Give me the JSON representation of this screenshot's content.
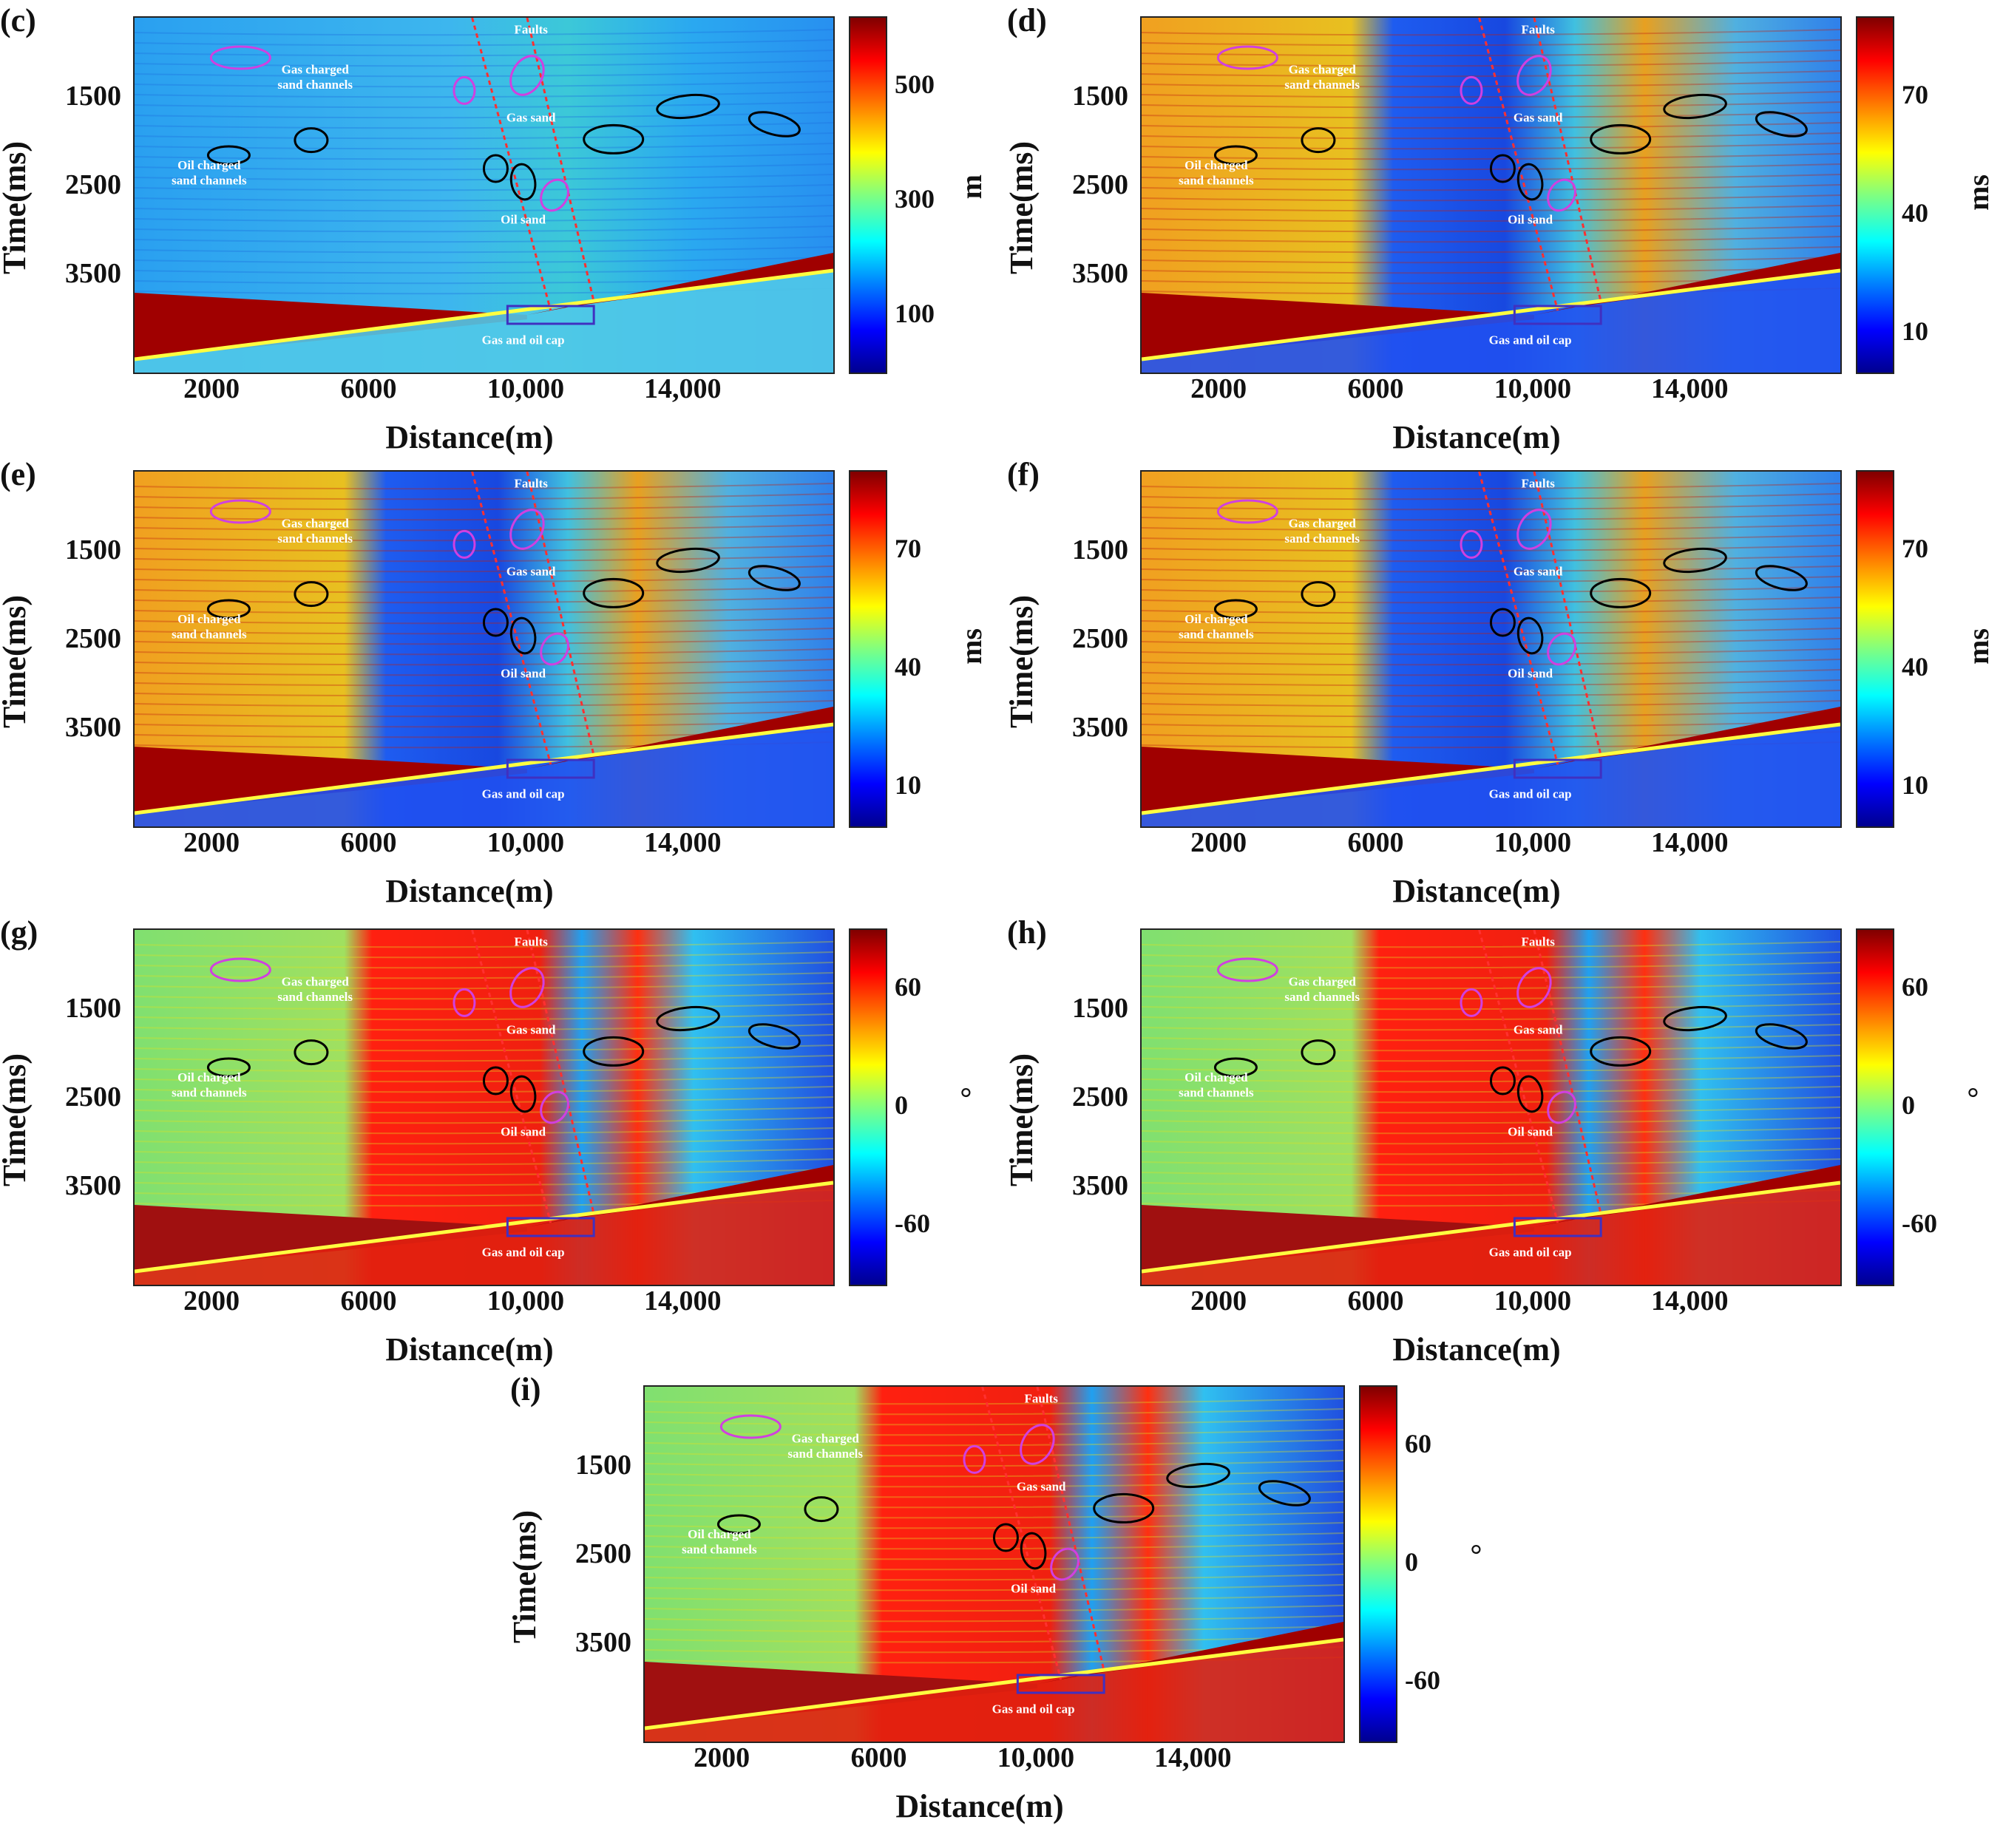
{
  "chart_data": [
    {
      "type": "heatmap",
      "panel_label": "(c)",
      "xlabel": "Distance(m)",
      "ylabel": "Time(ms)",
      "x_ticks": [
        "2000",
        "6000",
        "10,000",
        "14,000"
      ],
      "y_ticks": [
        "1500",
        "2500",
        "3500"
      ],
      "colorbar": {
        "unit": "m",
        "ticks": [
          "500",
          "300",
          "100"
        ],
        "range": [
          0,
          620
        ]
      },
      "annotations": [
        "Faults",
        "Gas charged",
        "sand channels",
        "Gas sand",
        "Oil charged",
        "sand channels",
        "Oil sand",
        "Gas and oil cap"
      ]
    },
    {
      "type": "heatmap",
      "panel_label": "(d)",
      "xlabel": "Distance(m)",
      "ylabel": "Time(ms)",
      "x_ticks": [
        "2000",
        "6000",
        "10,000",
        "14,000"
      ],
      "y_ticks": [
        "1500",
        "2500",
        "3500"
      ],
      "colorbar": {
        "unit": "ms",
        "ticks": [
          "70",
          "40",
          "10"
        ],
        "range": [
          0,
          90
        ]
      },
      "annotations": [
        "Faults",
        "Gas charged",
        "sand channels",
        "Gas sand",
        "Oil charged",
        "sand channels",
        "Oil sand",
        "Gas and oil cap"
      ]
    },
    {
      "type": "heatmap",
      "panel_label": "(e)",
      "xlabel": "Distance(m)",
      "ylabel": "Time(ms)",
      "x_ticks": [
        "2000",
        "6000",
        "10,000",
        "14,000"
      ],
      "y_ticks": [
        "1500",
        "2500",
        "3500"
      ],
      "colorbar": {
        "unit": "ms",
        "ticks": [
          "70",
          "40",
          "10"
        ],
        "range": [
          0,
          90
        ]
      },
      "annotations": [
        "Faults",
        "Gas charged",
        "sand channels",
        "Gas sand",
        "Oil charged",
        "sand channels",
        "Oil sand",
        "Gas and oil cap"
      ]
    },
    {
      "type": "heatmap",
      "panel_label": "(f)",
      "xlabel": "Distance(m)",
      "ylabel": "Time(ms)",
      "x_ticks": [
        "2000",
        "6000",
        "10,000",
        "14,000"
      ],
      "y_ticks": [
        "1500",
        "2500",
        "3500"
      ],
      "colorbar": {
        "unit": "ms",
        "ticks": [
          "70",
          "40",
          "10"
        ],
        "range": [
          0,
          90
        ]
      },
      "annotations": [
        "Faults",
        "Gas charged",
        "sand channels",
        "Gas sand",
        "Oil charged",
        "sand channels",
        "Oil sand",
        "Gas and oil cap"
      ]
    },
    {
      "type": "heatmap",
      "panel_label": "(g)",
      "xlabel": "Distance(m)",
      "ylabel": "Time(ms)",
      "x_ticks": [
        "2000",
        "6000",
        "10,000",
        "14,000"
      ],
      "y_ticks": [
        "1500",
        "2500",
        "3500"
      ],
      "colorbar": {
        "unit": "°",
        "ticks": [
          "60",
          "0",
          "-60"
        ],
        "range": [
          -90,
          90
        ]
      },
      "annotations": [
        "Faults",
        "Gas charged",
        "sand channels",
        "Gas sand",
        "Oil charged",
        "sand channels",
        "Oil sand",
        "Gas and oil cap"
      ]
    },
    {
      "type": "heatmap",
      "panel_label": "(h)",
      "xlabel": "Distance(m)",
      "ylabel": "Time(ms)",
      "x_ticks": [
        "2000",
        "6000",
        "10,000",
        "14,000"
      ],
      "y_ticks": [
        "1500",
        "2500",
        "3500"
      ],
      "colorbar": {
        "unit": "°",
        "ticks": [
          "60",
          "0",
          "-60"
        ],
        "range": [
          -90,
          90
        ]
      },
      "annotations": [
        "Faults",
        "Gas charged",
        "sand channels",
        "Gas sand",
        "Oil charged",
        "sand channels",
        "Oil sand",
        "Gas and oil cap"
      ]
    },
    {
      "type": "heatmap",
      "panel_label": "(i)",
      "xlabel": "Distance(m)",
      "ylabel": "Time(ms)",
      "x_ticks": [
        "2000",
        "6000",
        "10,000",
        "14,000"
      ],
      "y_ticks": [
        "1500",
        "2500",
        "3500"
      ],
      "colorbar": {
        "unit": "°",
        "ticks": [
          "60",
          "0",
          "-60"
        ],
        "range": [
          -90,
          90
        ]
      },
      "annotations": [
        "Faults",
        "Gas charged",
        "sand channels",
        "Gas sand",
        "Oil charged",
        "sand channels",
        "Oil sand",
        "Gas and oil cap"
      ]
    }
  ]
}
